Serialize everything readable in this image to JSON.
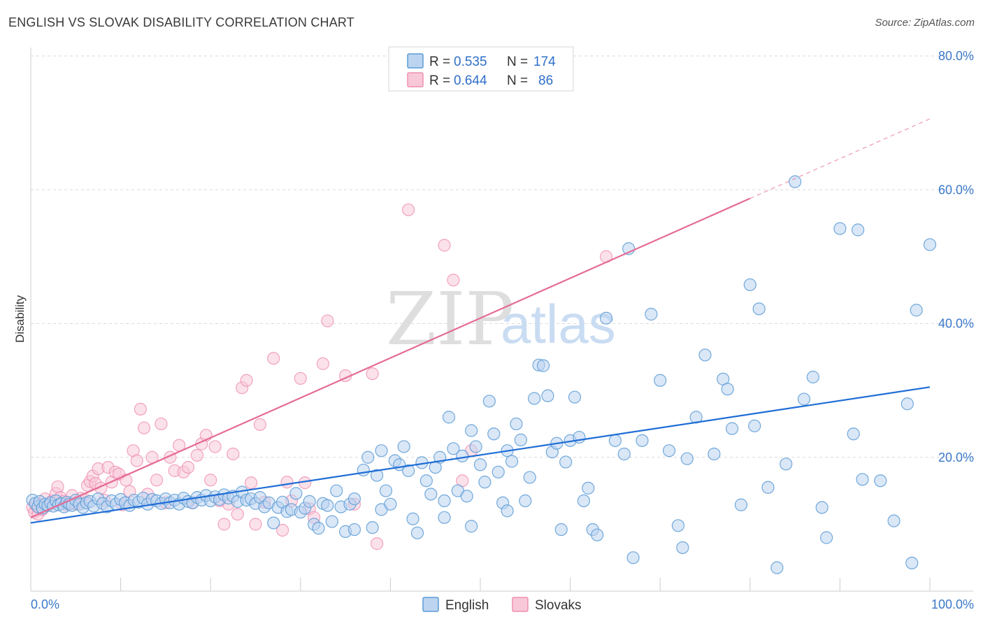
{
  "title": "ENGLISH VS SLOVAK DISABILITY CORRELATION CHART",
  "source": "Source: ZipAtlas.com",
  "watermark": {
    "zip": "ZIP",
    "atlas": "atlas"
  },
  "colors": {
    "english": "#5b9bd5",
    "english_fill": "#bcd4f0",
    "english_line": "#1f6dd6",
    "slovaks": "#ef8fb0",
    "slovaks_fill": "#f8c8d8",
    "slovaks_line": "#e56b94",
    "tick": "#3b78c9",
    "grid": "#d9d9d9"
  },
  "legend_top": [
    {
      "r_label": "R =",
      "r_value": "0.535",
      "n_label": "N =",
      "n_value": "174"
    },
    {
      "r_label": "R =",
      "r_value": "0.644",
      "n_label": "N =",
      "n_value": "86"
    }
  ],
  "chart_data": {
    "type": "scatter",
    "xlabel": "",
    "ylabel": "Disability",
    "xlim": [
      0,
      100
    ],
    "ylim": [
      0,
      80
    ],
    "x_tick_labels": [
      "0.0%",
      "100.0%"
    ],
    "y_ticks": [
      20,
      40,
      60,
      80
    ],
    "y_tick_labels": [
      "20.0%",
      "40.0%",
      "60.0%",
      "80.0%"
    ],
    "grid": true,
    "legend": [
      "English",
      "Slovaks"
    ],
    "legend_position": "bottom-center",
    "series": [
      {
        "name": "English",
        "trendline": {
          "x": [
            0,
            100
          ],
          "y": [
            10.2,
            30.5
          ]
        },
        "points": [
          [
            0.2,
            13.6
          ],
          [
            0.5,
            13.1
          ],
          [
            0.8,
            12.6
          ],
          [
            1.0,
            13.4
          ],
          [
            1.3,
            12.4
          ],
          [
            1.6,
            13.0
          ],
          [
            1.9,
            12.8
          ],
          [
            2.2,
            13.2
          ],
          [
            2.5,
            12.7
          ],
          [
            2.8,
            13.5
          ],
          [
            3.1,
            12.9
          ],
          [
            3.4,
            13.1
          ],
          [
            3.7,
            12.6
          ],
          [
            4.0,
            13.3
          ],
          [
            4.3,
            13.0
          ],
          [
            4.6,
            12.8
          ],
          [
            5.0,
            13.6
          ],
          [
            5.4,
            13.0
          ],
          [
            5.8,
            12.5
          ],
          [
            6.2,
            13.2
          ],
          [
            6.6,
            13.4
          ],
          [
            7.0,
            12.7
          ],
          [
            7.5,
            13.8
          ],
          [
            8.0,
            13.1
          ],
          [
            8.5,
            12.6
          ],
          [
            9.0,
            13.5
          ],
          [
            9.5,
            13.0
          ],
          [
            10.0,
            13.7
          ],
          [
            10.5,
            13.2
          ],
          [
            11.0,
            12.8
          ],
          [
            11.5,
            13.6
          ],
          [
            12.0,
            13.3
          ],
          [
            12.5,
            13.9
          ],
          [
            13.0,
            13.0
          ],
          [
            13.5,
            13.7
          ],
          [
            14.0,
            13.5
          ],
          [
            14.5,
            13.1
          ],
          [
            15.0,
            13.8
          ],
          [
            15.5,
            13.2
          ],
          [
            16.0,
            13.6
          ],
          [
            16.5,
            13.0
          ],
          [
            17.0,
            13.9
          ],
          [
            17.5,
            13.4
          ],
          [
            18.0,
            13.2
          ],
          [
            18.5,
            14.0
          ],
          [
            19.0,
            13.6
          ],
          [
            19.5,
            14.3
          ],
          [
            20.0,
            13.5
          ],
          [
            20.5,
            14.1
          ],
          [
            21.0,
            13.7
          ],
          [
            21.5,
            14.4
          ],
          [
            22.0,
            13.9
          ],
          [
            22.5,
            14.2
          ],
          [
            23.0,
            13.4
          ],
          [
            23.5,
            14.8
          ],
          [
            24.0,
            13.6
          ],
          [
            24.5,
            13.8
          ],
          [
            25.0,
            13.1
          ],
          [
            25.5,
            14.0
          ],
          [
            26.0,
            12.6
          ],
          [
            26.5,
            13.2
          ],
          [
            27.0,
            10.2
          ],
          [
            27.5,
            12.5
          ],
          [
            28.0,
            13.3
          ],
          [
            28.5,
            11.9
          ],
          [
            29.0,
            12.2
          ],
          [
            29.5,
            14.6
          ],
          [
            30.0,
            11.8
          ],
          [
            30.5,
            12.4
          ],
          [
            31.0,
            13.4
          ],
          [
            31.5,
            10.0
          ],
          [
            32.0,
            9.4
          ],
          [
            32.5,
            13.1
          ],
          [
            33.0,
            12.8
          ],
          [
            33.5,
            10.4
          ],
          [
            34.0,
            15.0
          ],
          [
            34.5,
            12.6
          ],
          [
            35.0,
            8.9
          ],
          [
            35.5,
            13.0
          ],
          [
            36.0,
            13.8
          ],
          [
            37.0,
            18.1
          ],
          [
            37.5,
            20.0
          ],
          [
            38.0,
            9.5
          ],
          [
            38.5,
            17.3
          ],
          [
            39.0,
            12.2
          ],
          [
            39.5,
            15.0
          ],
          [
            40.0,
            13.0
          ],
          [
            40.5,
            19.5
          ],
          [
            41.0,
            18.9
          ],
          [
            41.5,
            21.6
          ],
          [
            42.0,
            18.0
          ],
          [
            42.5,
            10.8
          ],
          [
            43.0,
            8.7
          ],
          [
            43.5,
            19.2
          ],
          [
            44.0,
            16.5
          ],
          [
            44.5,
            14.5
          ],
          [
            45.0,
            18.5
          ],
          [
            45.5,
            20.0
          ],
          [
            46.0,
            13.5
          ],
          [
            46.5,
            26.0
          ],
          [
            47.0,
            21.3
          ],
          [
            47.5,
            15.0
          ],
          [
            48.0,
            20.2
          ],
          [
            48.5,
            14.2
          ],
          [
            49.0,
            9.7
          ],
          [
            49.5,
            21.6
          ],
          [
            50.0,
            18.9
          ],
          [
            50.5,
            16.3
          ],
          [
            51.0,
            28.4
          ],
          [
            51.5,
            23.5
          ],
          [
            52.0,
            17.8
          ],
          [
            52.5,
            13.2
          ],
          [
            53.0,
            21.0
          ],
          [
            53.5,
            19.4
          ],
          [
            54.0,
            25.0
          ],
          [
            54.5,
            22.6
          ],
          [
            55.0,
            13.5
          ],
          [
            55.5,
            17.0
          ],
          [
            56.0,
            28.8
          ],
          [
            56.5,
            33.8
          ],
          [
            57.0,
            33.7
          ],
          [
            57.5,
            29.2
          ],
          [
            58.0,
            20.8
          ],
          [
            58.5,
            22.1
          ],
          [
            59.0,
            9.2
          ],
          [
            59.5,
            19.3
          ],
          [
            60.0,
            22.5
          ],
          [
            60.5,
            29.0
          ],
          [
            61.0,
            23.0
          ],
          [
            61.5,
            13.5
          ],
          [
            62.0,
            15.4
          ],
          [
            62.5,
            9.2
          ],
          [
            63.0,
            8.4
          ],
          [
            64.0,
            40.8
          ],
          [
            65.0,
            22.5
          ],
          [
            66.0,
            20.5
          ],
          [
            66.5,
            51.2
          ],
          [
            67.0,
            5.0
          ],
          [
            68.0,
            22.5
          ],
          [
            69.0,
            41.4
          ],
          [
            70.0,
            31.5
          ],
          [
            71.0,
            21.0
          ],
          [
            72.0,
            9.8
          ],
          [
            72.5,
            6.5
          ],
          [
            73.0,
            19.8
          ],
          [
            74.0,
            26.0
          ],
          [
            75.0,
            35.3
          ],
          [
            76.0,
            20.5
          ],
          [
            77.0,
            31.7
          ],
          [
            77.5,
            30.2
          ],
          [
            78.0,
            24.3
          ],
          [
            79.0,
            12.9
          ],
          [
            80.0,
            45.8
          ],
          [
            80.5,
            24.7
          ],
          [
            81.0,
            42.2
          ],
          [
            82.0,
            15.5
          ],
          [
            83.0,
            3.5
          ],
          [
            84.0,
            19.0
          ],
          [
            85.0,
            61.2
          ],
          [
            86.0,
            28.7
          ],
          [
            87.0,
            32.0
          ],
          [
            88.0,
            12.5
          ],
          [
            88.5,
            8.0
          ],
          [
            90.0,
            54.2
          ],
          [
            91.5,
            23.5
          ],
          [
            92.0,
            54.0
          ],
          [
            92.5,
            16.7
          ],
          [
            94.5,
            16.5
          ],
          [
            96.0,
            10.5
          ],
          [
            97.5,
            28.0
          ],
          [
            98.0,
            4.2
          ],
          [
            98.5,
            42.0
          ],
          [
            100.0,
            51.8
          ],
          [
            49.0,
            24.0
          ],
          [
            46.0,
            11.0
          ],
          [
            39.0,
            21.0
          ],
          [
            53.0,
            12.0
          ],
          [
            36.0,
            9.2
          ]
        ]
      },
      {
        "name": "Slovaks",
        "trendline": {
          "x": [
            0,
            80
          ],
          "y": [
            11.0,
            58.7
          ]
        },
        "trendline_dashed": {
          "x": [
            80,
            100
          ],
          "y": [
            58.7,
            70.6
          ]
        },
        "points": [
          [
            0.2,
            12.5
          ],
          [
            0.4,
            11.8
          ],
          [
            0.6,
            12.8
          ],
          [
            0.8,
            11.5
          ],
          [
            1.0,
            13.0
          ],
          [
            1.3,
            12.2
          ],
          [
            1.6,
            13.8
          ],
          [
            2.0,
            12.9
          ],
          [
            2.4,
            13.5
          ],
          [
            2.8,
            14.6
          ],
          [
            3.0,
            15.6
          ],
          [
            3.3,
            14.0
          ],
          [
            3.6,
            13.4
          ],
          [
            4.0,
            12.9
          ],
          [
            4.3,
            13.2
          ],
          [
            4.6,
            14.3
          ],
          [
            5.0,
            13.0
          ],
          [
            5.3,
            13.4
          ],
          [
            5.6,
            13.9
          ],
          [
            6.0,
            13.7
          ],
          [
            6.3,
            15.8
          ],
          [
            6.6,
            16.4
          ],
          [
            6.9,
            17.2
          ],
          [
            7.2,
            16.1
          ],
          [
            7.5,
            18.3
          ],
          [
            7.8,
            15.4
          ],
          [
            8.2,
            13.6
          ],
          [
            8.6,
            18.5
          ],
          [
            9.0,
            16.3
          ],
          [
            9.4,
            17.8
          ],
          [
            9.8,
            17.5
          ],
          [
            10.2,
            12.9
          ],
          [
            10.6,
            16.6
          ],
          [
            11.0,
            14.9
          ],
          [
            11.4,
            21.0
          ],
          [
            11.8,
            19.5
          ],
          [
            12.2,
            27.2
          ],
          [
            12.6,
            24.4
          ],
          [
            13.0,
            14.5
          ],
          [
            13.5,
            20.0
          ],
          [
            14.0,
            16.6
          ],
          [
            14.5,
            25.0
          ],
          [
            15.0,
            13.2
          ],
          [
            15.5,
            20.0
          ],
          [
            16.0,
            18.0
          ],
          [
            16.5,
            21.8
          ],
          [
            17.0,
            17.8
          ],
          [
            17.5,
            18.5
          ],
          [
            18.0,
            13.2
          ],
          [
            18.5,
            20.3
          ],
          [
            19.0,
            22.0
          ],
          [
            19.5,
            23.3
          ],
          [
            20.0,
            16.6
          ],
          [
            20.5,
            21.6
          ],
          [
            21.0,
            13.5
          ],
          [
            21.5,
            10.0
          ],
          [
            22.0,
            13.0
          ],
          [
            22.5,
            20.5
          ],
          [
            23.0,
            11.5
          ],
          [
            23.5,
            30.4
          ],
          [
            24.0,
            31.5
          ],
          [
            24.5,
            16.2
          ],
          [
            25.0,
            10.0
          ],
          [
            25.5,
            24.9
          ],
          [
            26.0,
            13.3
          ],
          [
            27.0,
            34.8
          ],
          [
            28.0,
            9.1
          ],
          [
            28.5,
            16.3
          ],
          [
            29.0,
            13.5
          ],
          [
            30.0,
            31.8
          ],
          [
            30.5,
            16.2
          ],
          [
            31.0,
            12.3
          ],
          [
            31.5,
            11.0
          ],
          [
            32.5,
            34.0
          ],
          [
            33.0,
            40.4
          ],
          [
            35.0,
            32.2
          ],
          [
            36.0,
            13.0
          ],
          [
            38.0,
            32.5
          ],
          [
            38.5,
            7.1
          ],
          [
            42.0,
            57.0
          ],
          [
            43.0,
            78.0
          ],
          [
            46.0,
            51.7
          ],
          [
            47.0,
            46.5
          ],
          [
            48.0,
            16.5
          ],
          [
            49.0,
            21.0
          ],
          [
            64.0,
            50.0
          ]
        ]
      }
    ]
  }
}
